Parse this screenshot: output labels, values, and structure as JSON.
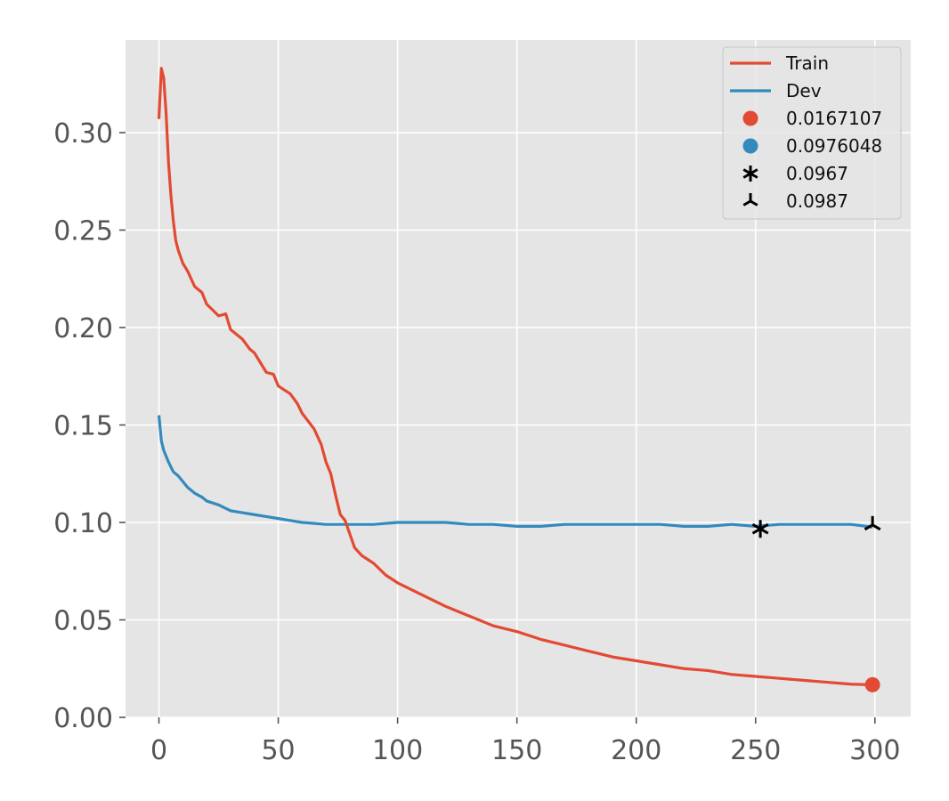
{
  "chart_data": {
    "type": "line",
    "title": "",
    "xlabel": "",
    "ylabel": "",
    "xlim": [
      -14,
      315
    ],
    "ylim": [
      0.0,
      0.3475
    ],
    "x_ticks": [
      0,
      50,
      100,
      150,
      200,
      250,
      300
    ],
    "y_ticks": [
      0.0,
      0.05,
      0.1,
      0.15,
      0.2,
      0.25,
      0.3
    ],
    "x_tick_labels": [
      "0",
      "50",
      "100",
      "150",
      "200",
      "250",
      "300"
    ],
    "y_tick_labels": [
      "0.00",
      "0.05",
      "0.10",
      "0.15",
      "0.20",
      "0.25",
      "0.30"
    ],
    "grid": true,
    "legend_position": "top-right",
    "series": [
      {
        "name": "Train",
        "kind": "line",
        "color": "#E24A33",
        "points": [
          [
            0,
            0.307
          ],
          [
            1,
            0.333
          ],
          [
            2,
            0.328
          ],
          [
            3,
            0.31
          ],
          [
            4,
            0.285
          ],
          [
            5,
            0.268
          ],
          [
            6,
            0.255
          ],
          [
            7,
            0.245
          ],
          [
            8,
            0.24
          ],
          [
            10,
            0.233
          ],
          [
            12,
            0.229
          ],
          [
            15,
            0.221
          ],
          [
            18,
            0.218
          ],
          [
            20,
            0.212
          ],
          [
            25,
            0.206
          ],
          [
            28,
            0.207
          ],
          [
            30,
            0.199
          ],
          [
            35,
            0.194
          ],
          [
            38,
            0.189
          ],
          [
            40,
            0.187
          ],
          [
            45,
            0.177
          ],
          [
            48,
            0.176
          ],
          [
            50,
            0.17
          ],
          [
            55,
            0.166
          ],
          [
            58,
            0.161
          ],
          [
            60,
            0.156
          ],
          [
            65,
            0.148
          ],
          [
            68,
            0.14
          ],
          [
            70,
            0.131
          ],
          [
            72,
            0.125
          ],
          [
            74,
            0.114
          ],
          [
            76,
            0.104
          ],
          [
            78,
            0.101
          ],
          [
            80,
            0.094
          ],
          [
            82,
            0.087
          ],
          [
            85,
            0.083
          ],
          [
            90,
            0.079
          ],
          [
            95,
            0.073
          ],
          [
            100,
            0.069
          ],
          [
            110,
            0.063
          ],
          [
            120,
            0.057
          ],
          [
            130,
            0.052
          ],
          [
            140,
            0.047
          ],
          [
            150,
            0.044
          ],
          [
            160,
            0.04
          ],
          [
            170,
            0.037
          ],
          [
            180,
            0.034
          ],
          [
            190,
            0.031
          ],
          [
            200,
            0.029
          ],
          [
            210,
            0.027
          ],
          [
            220,
            0.025
          ],
          [
            230,
            0.024
          ],
          [
            240,
            0.022
          ],
          [
            250,
            0.021
          ],
          [
            260,
            0.02
          ],
          [
            270,
            0.019
          ],
          [
            280,
            0.018
          ],
          [
            290,
            0.017
          ],
          [
            299,
            0.0167
          ]
        ]
      },
      {
        "name": "Dev",
        "kind": "line",
        "color": "#348ABD",
        "points": [
          [
            0,
            0.155
          ],
          [
            1,
            0.142
          ],
          [
            2,
            0.137
          ],
          [
            4,
            0.131
          ],
          [
            6,
            0.126
          ],
          [
            8,
            0.124
          ],
          [
            10,
            0.121
          ],
          [
            12,
            0.118
          ],
          [
            15,
            0.115
          ],
          [
            18,
            0.113
          ],
          [
            20,
            0.111
          ],
          [
            25,
            0.109
          ],
          [
            30,
            0.106
          ],
          [
            35,
            0.105
          ],
          [
            40,
            0.104
          ],
          [
            45,
            0.103
          ],
          [
            50,
            0.102
          ],
          [
            55,
            0.101
          ],
          [
            60,
            0.1
          ],
          [
            70,
            0.099
          ],
          [
            80,
            0.099
          ],
          [
            90,
            0.099
          ],
          [
            100,
            0.1
          ],
          [
            110,
            0.1
          ],
          [
            120,
            0.1
          ],
          [
            130,
            0.099
          ],
          [
            140,
            0.099
          ],
          [
            150,
            0.098
          ],
          [
            160,
            0.098
          ],
          [
            170,
            0.099
          ],
          [
            180,
            0.099
          ],
          [
            190,
            0.099
          ],
          [
            200,
            0.099
          ],
          [
            210,
            0.099
          ],
          [
            220,
            0.098
          ],
          [
            230,
            0.098
          ],
          [
            240,
            0.099
          ],
          [
            250,
            0.098
          ],
          [
            260,
            0.099
          ],
          [
            270,
            0.099
          ],
          [
            280,
            0.099
          ],
          [
            290,
            0.099
          ],
          [
            299,
            0.0976
          ]
        ]
      },
      {
        "name": "0.0167107",
        "kind": "marker",
        "marker": "circle",
        "color": "#E24A33",
        "points": [
          [
            299,
            0.0167107
          ]
        ]
      },
      {
        "name": "0.0976048",
        "kind": "marker",
        "marker": "circle",
        "color": "#348ABD",
        "points": []
      },
      {
        "name": "0.0967",
        "kind": "marker",
        "marker": "star",
        "color": "#000000",
        "points": [
          [
            252,
            0.0967
          ]
        ]
      },
      {
        "name": "0.0987",
        "kind": "marker",
        "marker": "tri",
        "color": "#000000",
        "points": [
          [
            299,
            0.0987
          ]
        ]
      }
    ]
  },
  "colors": {
    "plot_background": "#E5E5E5",
    "grid": "#FFFFFF",
    "tick_text": "#555555"
  }
}
